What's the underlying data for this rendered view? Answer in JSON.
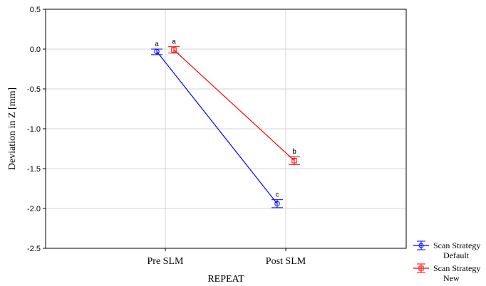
{
  "chart_data": {
    "type": "line",
    "xlabel": "REPEAT",
    "ylabel": "Deviation in Z [mm]",
    "categories": [
      "Pre SLM",
      "Post SLM"
    ],
    "ylim": [
      -2.5,
      0.5
    ],
    "yticks": [
      0.5,
      0.0,
      -0.5,
      -1.0,
      -1.5,
      -2.0,
      -2.5
    ],
    "ytick_labels": [
      "0.5",
      "0.0",
      "-0.5",
      "-1.0",
      "-1.5",
      "-2.0",
      "-2.5"
    ],
    "grid": true,
    "legend_position": "bottom-right-outside",
    "series": [
      {
        "name": "Scan Strategy Default",
        "legend_lines": [
          "Scan Strategy",
          "Default"
        ],
        "color": "#0000ff",
        "marker": "circle",
        "values": [
          -0.03,
          -1.94
        ],
        "err_low": [
          -0.07,
          -1.99
        ],
        "err_high": [
          0.0,
          -1.89
        ],
        "labels": [
          "a",
          "c"
        ]
      },
      {
        "name": "Scan Strategy New",
        "legend_lines": [
          "Scan Strategy",
          "New"
        ],
        "color": "#ff0000",
        "marker": "square",
        "values": [
          -0.01,
          -1.4
        ],
        "err_low": [
          -0.05,
          -1.45
        ],
        "err_high": [
          0.03,
          -1.35
        ],
        "labels": [
          "a",
          "b"
        ]
      }
    ]
  }
}
